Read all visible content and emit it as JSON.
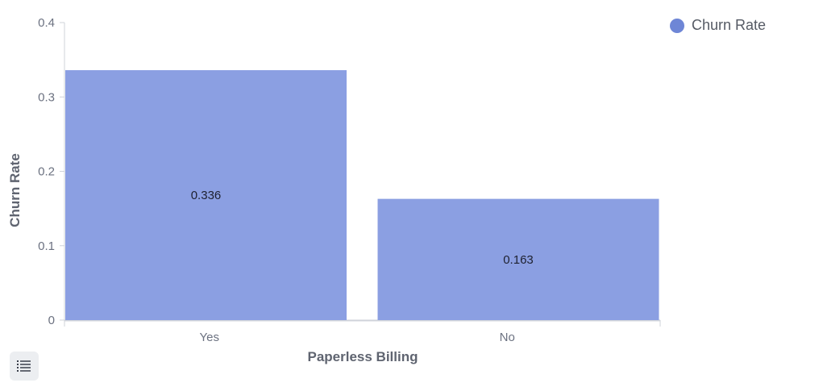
{
  "chart_data": {
    "type": "bar",
    "categories": [
      "Yes",
      "No"
    ],
    "values": [
      0.336,
      0.163
    ],
    "data_labels": [
      "0.336",
      "0.163"
    ],
    "series": [
      {
        "name": "Churn Rate",
        "values": [
          0.336,
          0.163
        ]
      }
    ],
    "xlabel": "Paperless Billing",
    "ylabel": "Churn Rate",
    "ylim": [
      0,
      0.4
    ],
    "yticks": [
      "0",
      "0.1",
      "0.2",
      "0.3",
      "0.4"
    ],
    "grid": false,
    "legend_position": "top-right"
  },
  "colors": {
    "bar": "#8b9fe2",
    "legend_marker": "#6e86d6",
    "axis": "#cfd3da"
  },
  "legend": {
    "label": "Churn Rate"
  },
  "toolbar": {
    "table_toggle_icon": "list-icon"
  }
}
